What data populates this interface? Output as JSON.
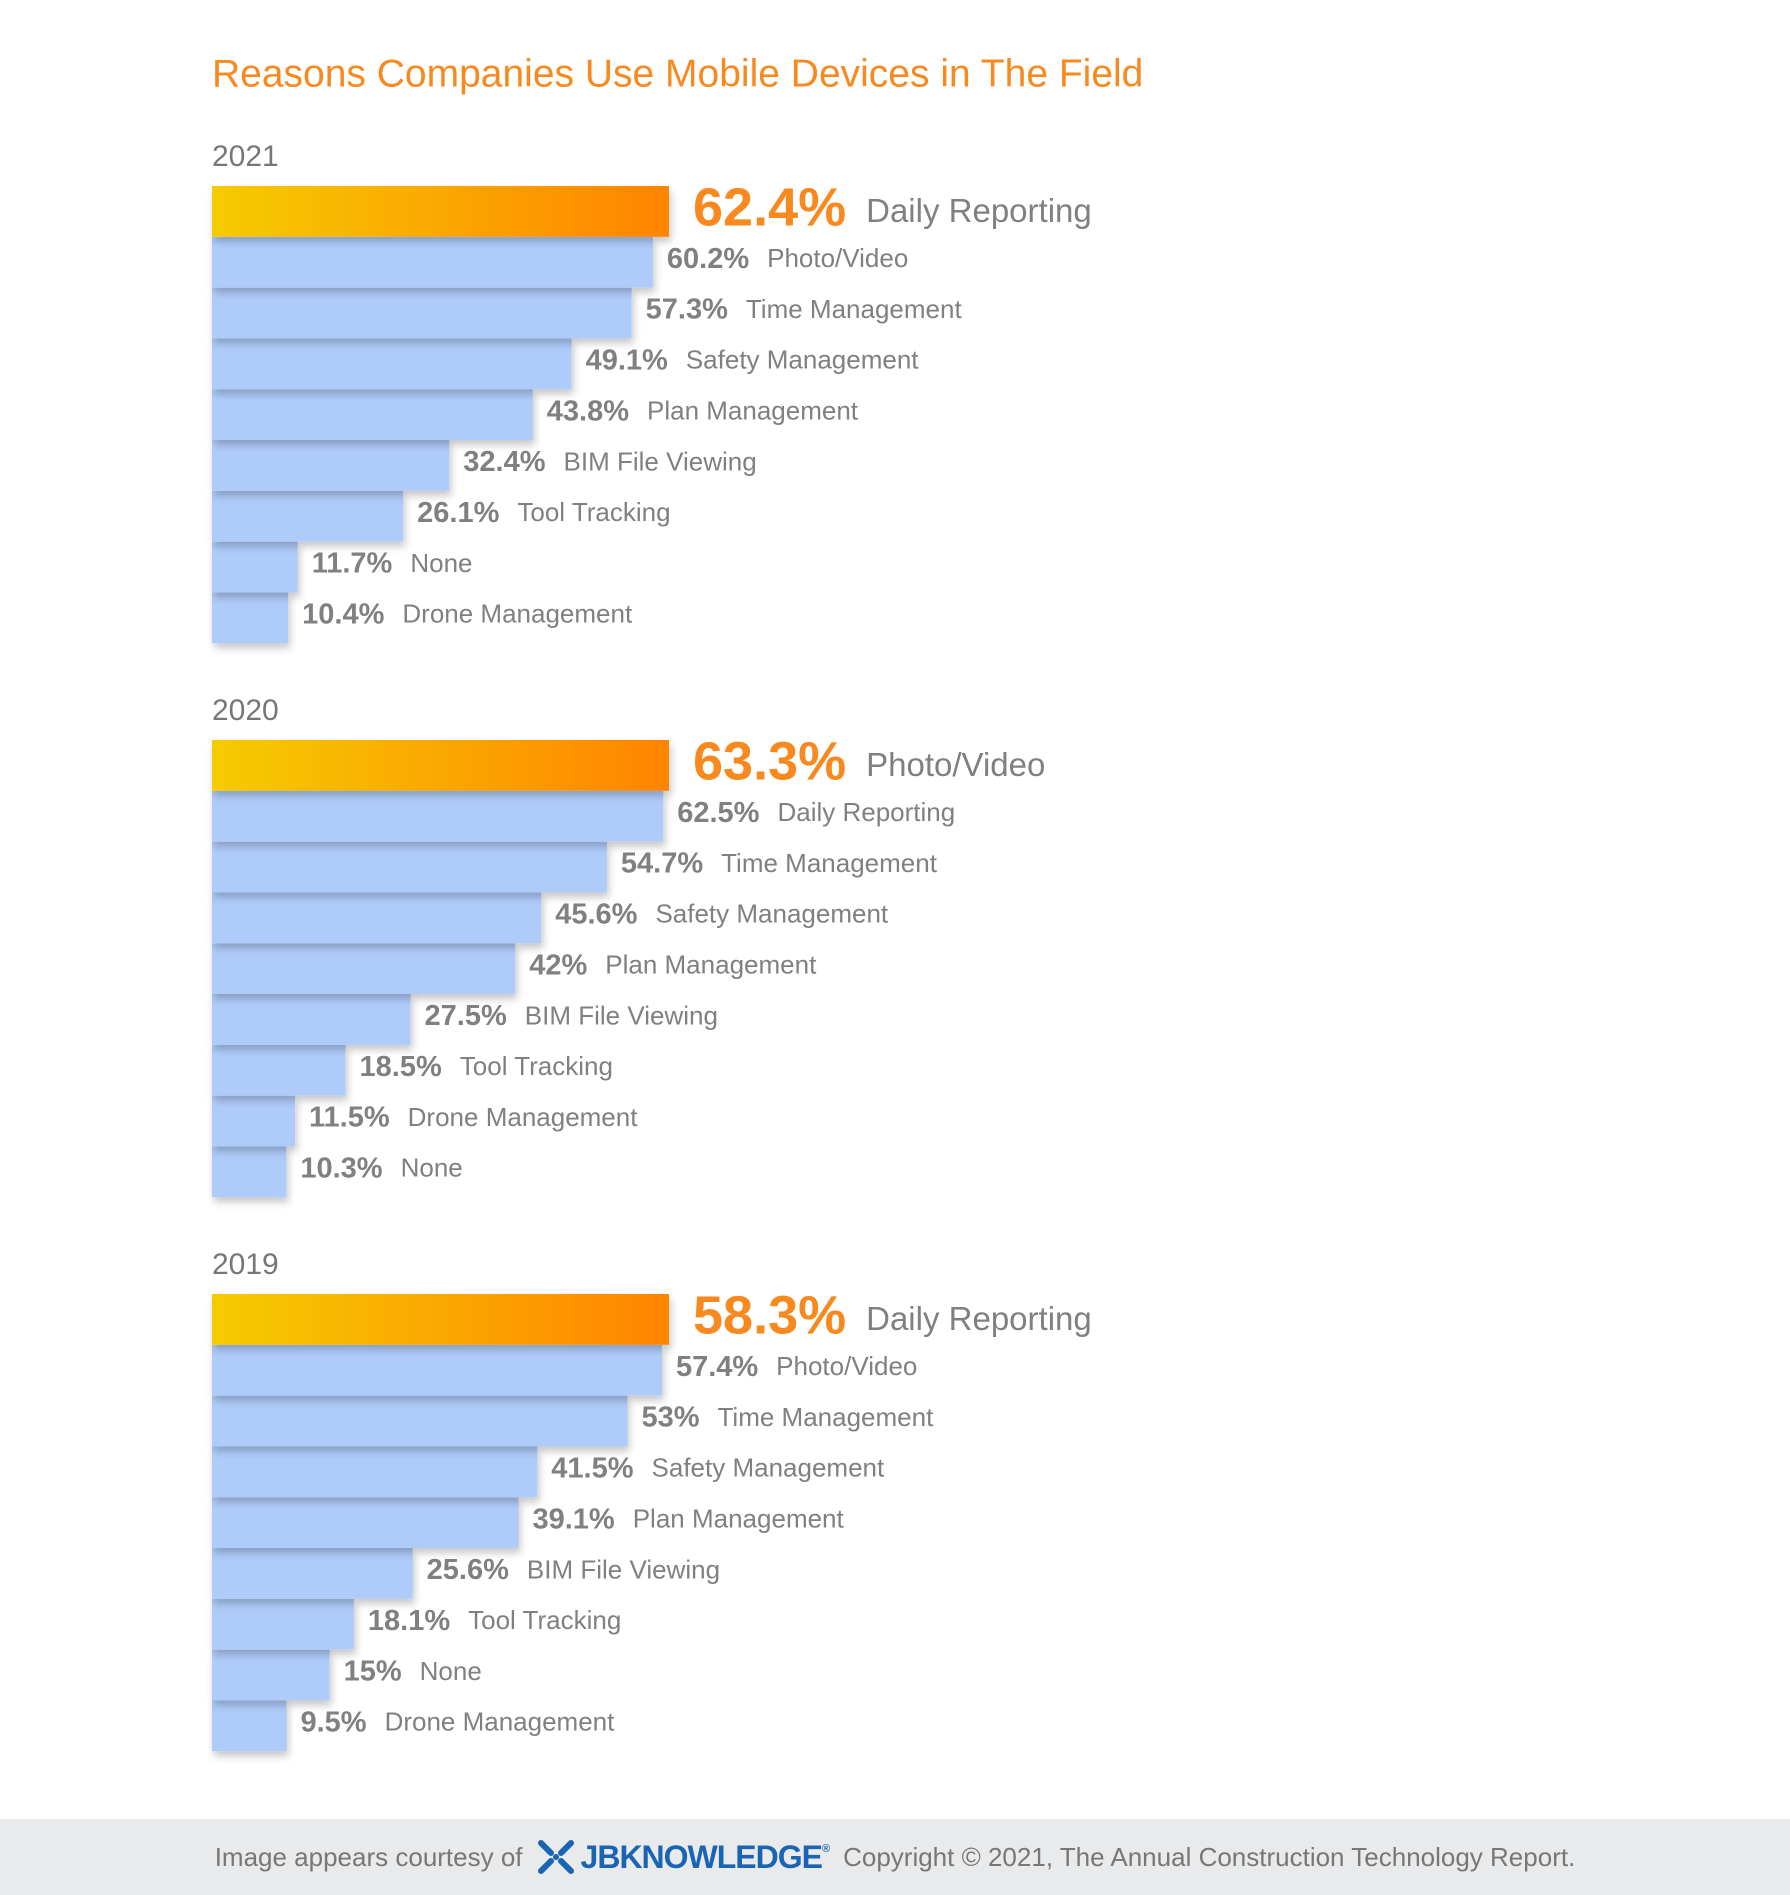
{
  "title": "Reasons Companies Use Mobile Devices in The Field",
  "chart_data": [
    {
      "type": "bar",
      "title": "2021",
      "categories": [
        "Daily Reporting",
        "Photo/Video",
        "Time Management",
        "Safety Management",
        "Plan Management",
        "BIM File Viewing",
        "Tool Tracking",
        "None",
        "Drone Management"
      ],
      "values": [
        62.4,
        60.2,
        57.3,
        49.1,
        43.8,
        32.4,
        26.1,
        11.7,
        10.4
      ],
      "value_labels": [
        "62.4%",
        "60.2%",
        "57.3%",
        "49.1%",
        "43.8%",
        "32.4%",
        "26.1%",
        "11.7%",
        "10.4%"
      ],
      "color": "#afcbfa",
      "highlight_colors": [
        "#f6cb00",
        "#ff8400"
      ]
    },
    {
      "type": "bar",
      "title": "2020",
      "categories": [
        "Photo/Video",
        "Daily Reporting",
        "Time Management",
        "Safety Management",
        "Plan Management",
        "BIM File Viewing",
        "Tool Tracking",
        "Drone Management",
        "None"
      ],
      "values": [
        63.3,
        62.5,
        54.7,
        45.6,
        42,
        27.5,
        18.5,
        11.5,
        10.3
      ],
      "value_labels": [
        "63.3%",
        "62.5%",
        "54.7%",
        "45.6%",
        "42%",
        "27.5%",
        "18.5%",
        "11.5%",
        "10.3%"
      ],
      "color": "#afcbfa",
      "highlight_colors": [
        "#f6cb00",
        "#ff8400"
      ]
    },
    {
      "type": "bar",
      "title": "2019",
      "categories": [
        "Daily Reporting",
        "Photo/Video",
        "Time Management",
        "Safety Management",
        "Plan Management",
        "BIM File Viewing",
        "Tool Tracking",
        "None",
        "Drone Management"
      ],
      "values": [
        58.3,
        57.4,
        53,
        41.5,
        39.1,
        25.6,
        18.1,
        15,
        9.5
      ],
      "value_labels": [
        "58.3%",
        "57.4%",
        "53%",
        "41.5%",
        "39.1%",
        "25.6%",
        "18.1%",
        "15%",
        "9.5%"
      ],
      "color": "#afcbfa",
      "highlight_colors": [
        "#f6cb00",
        "#ff8400"
      ]
    }
  ],
  "footer": {
    "prefix": "Image appears courtesy of",
    "logo": "JBKNOWLEDGE",
    "logo_mark": "®",
    "copyright": "Copyright © 2021, The Annual Construction Technology Report."
  }
}
